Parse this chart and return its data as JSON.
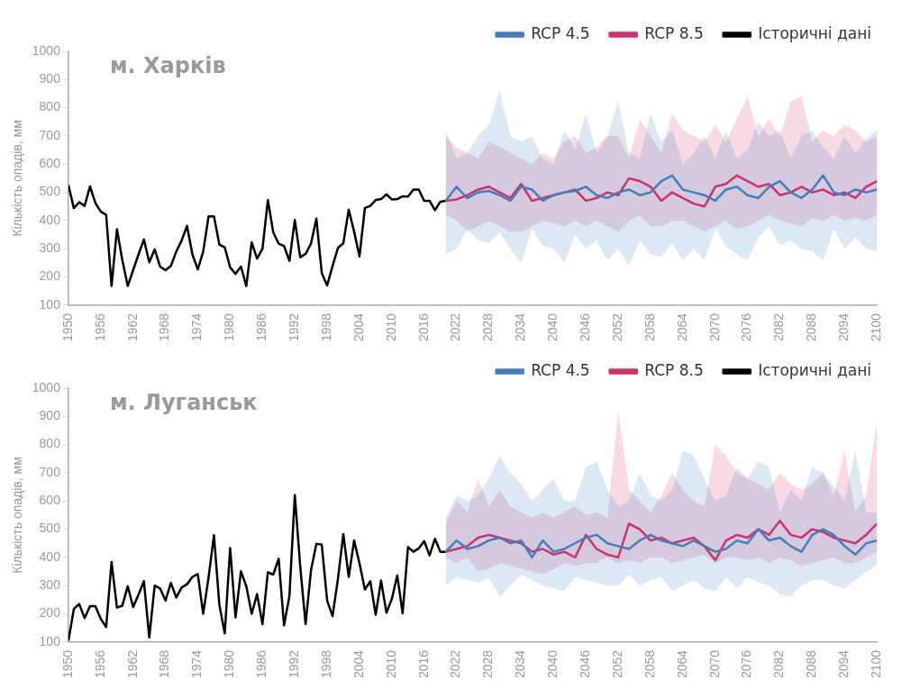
{
  "chart_data": [
    {
      "type": "line",
      "title": "м. Харків",
      "ylabel": "Кількість опадів, мм",
      "xlim": [
        1950,
        2100
      ],
      "xticks": [
        1950,
        1956,
        1962,
        1968,
        1974,
        1980,
        1986,
        1992,
        1998,
        2004,
        2010,
        2016,
        2022,
        2028,
        2034,
        2040,
        2046,
        2052,
        2058,
        2064,
        2070,
        2076,
        2082,
        2088,
        2094,
        2100
      ],
      "ylim": [
        100,
        1000
      ],
      "yticks": [
        100,
        200,
        300,
        400,
        500,
        600,
        700,
        800,
        900,
        1000
      ],
      "legend": "top right",
      "marker": "none",
      "line_style": "solid",
      "series": [
        {
          "name": "RCP 4.5",
          "color": "#3f7fc1",
          "x": [
            2020,
            2022,
            2024,
            2026,
            2028,
            2030,
            2032,
            2034,
            2036,
            2038,
            2040,
            2042,
            2044,
            2046,
            2048,
            2050,
            2052,
            2054,
            2056,
            2058,
            2060,
            2062,
            2064,
            2066,
            2068,
            2070,
            2072,
            2074,
            2076,
            2078,
            2080,
            2082,
            2084,
            2086,
            2088,
            2090,
            2092,
            2094,
            2096,
            2098,
            2100
          ],
          "values": [
            470,
            520,
            480,
            500,
            505,
            490,
            470,
            520,
            510,
            470,
            490,
            500,
            505,
            520,
            490,
            480,
            500,
            510,
            490,
            500,
            540,
            560,
            510,
            500,
            490,
            470,
            510,
            520,
            490,
            480,
            520,
            540,
            500,
            480,
            510,
            560,
            500,
            490,
            510,
            500,
            510
          ],
          "lower": [
            280,
            300,
            370,
            330,
            320,
            360,
            300,
            250,
            370,
            310,
            300,
            250,
            350,
            300,
            330,
            260,
            300,
            240,
            330,
            280,
            270,
            320,
            260,
            300,
            260,
            370,
            310,
            280,
            260,
            340,
            380,
            310,
            330,
            300,
            290,
            260,
            370,
            300,
            340,
            300,
            290
          ],
          "upper": [
            720,
            620,
            640,
            700,
            740,
            860,
            700,
            680,
            700,
            620,
            600,
            720,
            650,
            780,
            640,
            700,
            820,
            640,
            620,
            780,
            680,
            720,
            600,
            640,
            700,
            620,
            720,
            620,
            650,
            750,
            700,
            720,
            620,
            700,
            720,
            660,
            620,
            700,
            640,
            690,
            720
          ]
        },
        {
          "name": "RCP 8.5",
          "color": "#d1306b",
          "x": [
            2020,
            2022,
            2024,
            2026,
            2028,
            2030,
            2032,
            2034,
            2036,
            2038,
            2040,
            2042,
            2044,
            2046,
            2048,
            2050,
            2052,
            2054,
            2056,
            2058,
            2060,
            2062,
            2064,
            2066,
            2068,
            2070,
            2072,
            2074,
            2076,
            2078,
            2080,
            2082,
            2084,
            2086,
            2088,
            2090,
            2092,
            2094,
            2096,
            2098,
            2100
          ],
          "values": [
            470,
            475,
            490,
            510,
            520,
            500,
            480,
            530,
            470,
            480,
            490,
            500,
            510,
            470,
            480,
            500,
            490,
            550,
            540,
            520,
            470,
            500,
            480,
            460,
            450,
            520,
            530,
            560,
            540,
            520,
            530,
            490,
            500,
            520,
            500,
            510,
            490,
            500,
            480,
            520,
            540
          ],
          "lower": [
            420,
            400,
            360,
            380,
            400,
            380,
            360,
            360,
            380,
            400,
            390,
            380,
            400,
            380,
            400,
            380,
            360,
            400,
            420,
            380,
            380,
            400,
            400,
            380,
            360,
            380,
            400,
            370,
            380,
            400,
            420,
            400,
            390,
            380,
            410,
            400,
            420,
            400,
            410,
            400,
            420
          ],
          "upper": [
            700,
            660,
            640,
            620,
            680,
            660,
            640,
            620,
            600,
            640,
            620,
            680,
            700,
            640,
            660,
            700,
            700,
            620,
            760,
            700,
            640,
            780,
            720,
            700,
            680,
            740,
            680,
            760,
            840,
            700,
            760,
            700,
            820,
            840,
            680,
            720,
            700,
            740,
            720,
            680,
            700
          ]
        },
        {
          "name": "Історичні дані",
          "color": "#000000",
          "x": [
            1950,
            1951,
            1952,
            1953,
            1954,
            1955,
            1956,
            1957,
            1958,
            1959,
            1960,
            1961,
            1962,
            1963,
            1964,
            1965,
            1966,
            1967,
            1968,
            1969,
            1970,
            1971,
            1972,
            1973,
            1974,
            1975,
            1976,
            1977,
            1978,
            1979,
            1980,
            1981,
            1982,
            1983,
            1984,
            1985,
            1986,
            1987,
            1988,
            1989,
            1990,
            1991,
            1992,
            1993,
            1994,
            1995,
            1996,
            1997,
            1998,
            1999,
            2000,
            2001,
            2002,
            2003,
            2004,
            2005,
            2006,
            2007,
            2008,
            2009,
            2010,
            2011,
            2012,
            2013,
            2014,
            2015,
            2016,
            2017,
            2018,
            2019,
            2020
          ],
          "values": [
            526,
            444,
            465,
            452,
            521,
            462,
            432,
            420,
            168,
            369,
            260,
            168,
            224,
            280,
            333,
            252,
            298,
            237,
            224,
            239,
            290,
            329,
            381,
            280,
            227,
            290,
            415,
            415,
            315,
            305,
            234,
            211,
            237,
            168,
            323,
            265,
            300,
            473,
            358,
            318,
            310,
            257,
            402,
            270,
            282,
            318,
            407,
            214,
            170,
            239,
            303,
            320,
            439,
            361,
            273,
            445,
            452,
            473,
            476,
            493,
            475,
            476,
            486,
            485,
            510,
            510,
            470,
            470,
            437,
            467,
            470
          ]
        }
      ]
    },
    {
      "type": "line",
      "title": "м. Луганськ",
      "ylabel": "Кількість опадів, мм",
      "xlim": [
        1950,
        2100
      ],
      "xticks": [
        1950,
        1956,
        1962,
        1968,
        1974,
        1980,
        1986,
        1992,
        1998,
        2004,
        2010,
        2016,
        2022,
        2028,
        2034,
        2040,
        2046,
        2052,
        2058,
        2064,
        2070,
        2076,
        2082,
        2088,
        2094,
        2100
      ],
      "ylim": [
        100,
        1000
      ],
      "yticks": [
        100,
        200,
        300,
        400,
        500,
        600,
        700,
        800,
        900,
        1000
      ],
      "legend": "top right",
      "marker": "none",
      "line_style": "solid",
      "series": [
        {
          "name": "RCP 4.5",
          "color": "#3f7fc1",
          "x": [
            2020,
            2022,
            2024,
            2026,
            2028,
            2030,
            2032,
            2034,
            2036,
            2038,
            2040,
            2042,
            2044,
            2046,
            2048,
            2050,
            2052,
            2054,
            2056,
            2058,
            2060,
            2062,
            2064,
            2066,
            2068,
            2070,
            2072,
            2074,
            2076,
            2078,
            2080,
            2082,
            2084,
            2086,
            2088,
            2090,
            2092,
            2094,
            2096,
            2098,
            2100
          ],
          "values": [
            420,
            460,
            430,
            440,
            460,
            470,
            450,
            460,
            400,
            460,
            420,
            430,
            450,
            470,
            480,
            450,
            440,
            430,
            460,
            480,
            460,
            450,
            440,
            460,
            440,
            420,
            430,
            460,
            450,
            500,
            460,
            470,
            440,
            420,
            480,
            500,
            480,
            440,
            410,
            450,
            460
          ],
          "lower": [
            300,
            330,
            320,
            310,
            330,
            260,
            300,
            340,
            320,
            300,
            290,
            280,
            330,
            320,
            310,
            300,
            300,
            340,
            300,
            320,
            330,
            280,
            300,
            320,
            290,
            280,
            330,
            290,
            330,
            310,
            300,
            270,
            260,
            300,
            320,
            320,
            300,
            290,
            320,
            350,
            370
          ],
          "upper": [
            540,
            620,
            600,
            620,
            680,
            760,
            700,
            660,
            600,
            640,
            680,
            600,
            600,
            720,
            740,
            640,
            580,
            600,
            700,
            620,
            600,
            640,
            780,
            760,
            680,
            600,
            620,
            720,
            680,
            740,
            720,
            560,
            640,
            600,
            720,
            700,
            650,
            600,
            780,
            560,
            560
          ]
        },
        {
          "name": "RCP 8.5",
          "color": "#d1306b",
          "x": [
            2020,
            2022,
            2024,
            2026,
            2028,
            2030,
            2032,
            2034,
            2036,
            2038,
            2040,
            2042,
            2044,
            2046,
            2048,
            2050,
            2052,
            2054,
            2056,
            2058,
            2060,
            2062,
            2064,
            2066,
            2068,
            2070,
            2072,
            2074,
            2076,
            2078,
            2080,
            2082,
            2084,
            2086,
            2088,
            2090,
            2092,
            2094,
            2096,
            2098,
            2100
          ],
          "values": [
            420,
            430,
            440,
            470,
            480,
            470,
            460,
            450,
            420,
            430,
            410,
            420,
            400,
            480,
            430,
            410,
            400,
            520,
            500,
            460,
            470,
            450,
            460,
            470,
            440,
            390,
            460,
            480,
            470,
            500,
            480,
            530,
            480,
            470,
            500,
            490,
            470,
            460,
            450,
            480,
            520
          ],
          "lower": [
            400,
            380,
            400,
            350,
            360,
            380,
            370,
            360,
            350,
            340,
            360,
            380,
            370,
            380,
            380,
            400,
            380,
            390,
            380,
            400,
            400,
            380,
            390,
            400,
            410,
            380,
            400,
            400,
            390,
            400,
            380,
            400,
            390,
            370,
            380,
            390,
            400,
            380,
            380,
            400,
            420
          ],
          "upper": [
            520,
            600,
            560,
            680,
            580,
            640,
            580,
            560,
            540,
            560,
            540,
            560,
            580,
            550,
            560,
            540,
            920,
            640,
            600,
            560,
            620,
            700,
            640,
            600,
            580,
            800,
            760,
            700,
            680,
            660,
            640,
            700,
            660,
            640,
            660,
            700,
            620,
            780,
            560,
            620,
            880
          ]
        },
        {
          "name": "Історичні дані",
          "color": "#000000",
          "x": [
            1950,
            1951,
            1952,
            1953,
            1954,
            1955,
            1956,
            1957,
            1958,
            1959,
            1960,
            1961,
            1962,
            1963,
            1964,
            1965,
            1966,
            1967,
            1968,
            1969,
            1970,
            1971,
            1972,
            1973,
            1974,
            1975,
            1976,
            1977,
            1978,
            1979,
            1980,
            1981,
            1982,
            1983,
            1984,
            1985,
            1986,
            1987,
            1988,
            1989,
            1990,
            1991,
            1992,
            1993,
            1994,
            1995,
            1996,
            1997,
            1998,
            1999,
            2000,
            2001,
            2002,
            2003,
            2004,
            2005,
            2006,
            2007,
            2008,
            2009,
            2010,
            2011,
            2012,
            2013,
            2014,
            2015,
            2016,
            2017,
            2018,
            2019,
            2020
          ],
          "values": [
            105,
            217,
            235,
            185,
            227,
            227,
            182,
            153,
            384,
            222,
            229,
            298,
            224,
            268,
            316,
            116,
            300,
            290,
            247,
            310,
            258,
            293,
            305,
            331,
            341,
            200,
            329,
            479,
            232,
            131,
            433,
            187,
            351,
            298,
            200,
            270,
            163,
            347,
            339,
            395,
            159,
            263,
            621,
            369,
            164,
            354,
            448,
            445,
            247,
            192,
            324,
            483,
            331,
            460,
            379,
            286,
            316,
            197,
            318,
            204,
            253,
            336,
            202,
            437,
            420,
            432,
            458,
            407,
            466,
            420,
            420
          ]
        }
      ]
    }
  ]
}
